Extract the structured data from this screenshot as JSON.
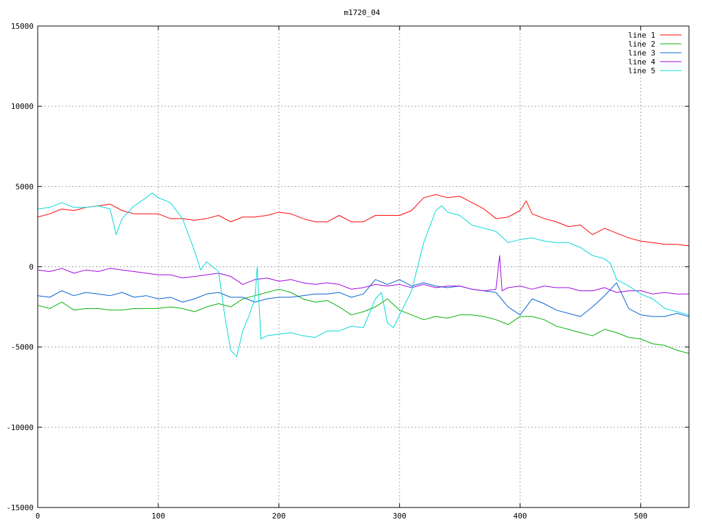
{
  "chart_data": {
    "type": "line",
    "title": "m1720_04",
    "xlabel": "",
    "ylabel": "",
    "xlim": [
      0,
      540
    ],
    "ylim": [
      -15000,
      15000
    ],
    "xticks": [
      0,
      100,
      200,
      300,
      400,
      500
    ],
    "yticks": [
      -15000,
      -10000,
      -5000,
      0,
      5000,
      10000,
      15000
    ],
    "grid": true,
    "legend_position": "top-right",
    "series": [
      {
        "name": "line 1",
        "color": "#ff0000",
        "x": [
          0,
          10,
          20,
          30,
          40,
          50,
          60,
          70,
          80,
          90,
          100,
          110,
          120,
          130,
          140,
          150,
          160,
          170,
          180,
          190,
          200,
          210,
          220,
          230,
          240,
          250,
          260,
          270,
          280,
          290,
          300,
          310,
          320,
          330,
          340,
          350,
          360,
          370,
          380,
          390,
          400,
          405,
          410,
          420,
          430,
          440,
          450,
          460,
          470,
          480,
          490,
          500,
          510,
          520,
          530,
          540
        ],
        "y": [
          3100,
          3300,
          3600,
          3500,
          3700,
          3800,
          3900,
          3500,
          3300,
          3300,
          3300,
          3000,
          3000,
          2900,
          3000,
          3200,
          2800,
          3100,
          3100,
          3200,
          3400,
          3300,
          3000,
          2800,
          2800,
          3200,
          2800,
          2800,
          3200,
          3200,
          3200,
          3500,
          4300,
          4500,
          4300,
          4400,
          4000,
          3600,
          3000,
          3100,
          3500,
          4100,
          3300,
          3000,
          2800,
          2500,
          2600,
          2000,
          2400,
          2100,
          1800,
          1600,
          1500,
          1400,
          1400,
          1300
        ]
      },
      {
        "name": "line 2",
        "color": "#00b000",
        "x": [
          0,
          10,
          20,
          30,
          40,
          50,
          60,
          70,
          80,
          90,
          100,
          110,
          120,
          130,
          140,
          150,
          160,
          170,
          180,
          190,
          200,
          210,
          220,
          230,
          240,
          250,
          260,
          270,
          280,
          290,
          300,
          310,
          320,
          330,
          340,
          350,
          360,
          370,
          380,
          390,
          400,
          410,
          420,
          430,
          440,
          450,
          460,
          470,
          480,
          490,
          500,
          510,
          520,
          530,
          540
        ],
        "y": [
          -2400,
          -2600,
          -2200,
          -2700,
          -2600,
          -2600,
          -2700,
          -2700,
          -2600,
          -2600,
          -2600,
          -2500,
          -2600,
          -2800,
          -2500,
          -2300,
          -2500,
          -2000,
          -1800,
          -1600,
          -1400,
          -1600,
          -2000,
          -2200,
          -2100,
          -2500,
          -3000,
          -2800,
          -2500,
          -2000,
          -2700,
          -3000,
          -3300,
          -3100,
          -3200,
          -3000,
          -3000,
          -3100,
          -3300,
          -3600,
          -3100,
          -3100,
          -3300,
          -3700,
          -3900,
          -4100,
          -4300,
          -3900,
          -4100,
          -4400,
          -4500,
          -4800,
          -4900,
          -5200,
          -5400
        ]
      },
      {
        "name": "line 3",
        "color": "#0060d0",
        "x": [
          0,
          10,
          20,
          30,
          40,
          50,
          60,
          70,
          80,
          90,
          100,
          110,
          120,
          130,
          140,
          150,
          160,
          170,
          180,
          190,
          200,
          210,
          220,
          230,
          240,
          250,
          260,
          270,
          280,
          290,
          300,
          310,
          320,
          330,
          340,
          350,
          360,
          370,
          380,
          390,
          400,
          410,
          420,
          430,
          440,
          450,
          460,
          470,
          480,
          490,
          500,
          510,
          520,
          530,
          540
        ],
        "y": [
          -1800,
          -1900,
          -1500,
          -1800,
          -1600,
          -1700,
          -1800,
          -1600,
          -1900,
          -1800,
          -2000,
          -1900,
          -2200,
          -2000,
          -1700,
          -1600,
          -1900,
          -1900,
          -2200,
          -2000,
          -1900,
          -1900,
          -1800,
          -1700,
          -1700,
          -1600,
          -1900,
          -1700,
          -800,
          -1100,
          -800,
          -1200,
          -1000,
          -1200,
          -1300,
          -1200,
          -1400,
          -1500,
          -1600,
          -2500,
          -3000,
          -2000,
          -2300,
          -2700,
          -2900,
          -3100,
          -2500,
          -1800,
          -1000,
          -2600,
          -3000,
          -3100,
          -3100,
          -2900,
          -3100
        ]
      },
      {
        "name": "line 4",
        "color": "#a000e0",
        "x": [
          0,
          10,
          20,
          30,
          40,
          50,
          60,
          70,
          80,
          90,
          100,
          110,
          120,
          130,
          140,
          150,
          160,
          170,
          180,
          190,
          200,
          210,
          220,
          230,
          240,
          250,
          260,
          270,
          280,
          290,
          300,
          310,
          320,
          330,
          340,
          350,
          360,
          370,
          380,
          383,
          385,
          390,
          400,
          410,
          420,
          430,
          440,
          450,
          460,
          470,
          480,
          490,
          500,
          510,
          520,
          530,
          540
        ],
        "y": [
          -200,
          -300,
          -100,
          -400,
          -200,
          -300,
          -100,
          -200,
          -300,
          -400,
          -500,
          -500,
          -700,
          -600,
          -500,
          -400,
          -600,
          -1100,
          -800,
          -700,
          -900,
          -800,
          -1000,
          -1100,
          -1000,
          -1100,
          -1400,
          -1300,
          -1100,
          -1200,
          -1100,
          -1300,
          -1100,
          -1300,
          -1200,
          -1200,
          -1400,
          -1500,
          -1400,
          700,
          -1500,
          -1300,
          -1200,
          -1400,
          -1200,
          -1300,
          -1300,
          -1500,
          -1500,
          -1300,
          -1600,
          -1500,
          -1500,
          -1700,
          -1600,
          -1700,
          -1700
        ]
      },
      {
        "name": "line 5",
        "color": "#00d8d8",
        "x": [
          0,
          10,
          20,
          30,
          40,
          50,
          60,
          65,
          70,
          80,
          90,
          95,
          100,
          110,
          120,
          130,
          135,
          140,
          150,
          155,
          160,
          165,
          170,
          175,
          180,
          182,
          185,
          190,
          200,
          210,
          220,
          230,
          240,
          250,
          260,
          270,
          280,
          285,
          290,
          295,
          300,
          310,
          320,
          330,
          335,
          340,
          350,
          360,
          370,
          380,
          390,
          400,
          410,
          420,
          430,
          440,
          450,
          460,
          470,
          475,
          480,
          490,
          500,
          510,
          520,
          530,
          540
        ],
        "y": [
          3600,
          3700,
          4000,
          3700,
          3700,
          3800,
          3600,
          2000,
          3000,
          3800,
          4300,
          4600,
          4300,
          4000,
          3000,
          1000,
          -200,
          300,
          -300,
          -3000,
          -5200,
          -5600,
          -4000,
          -3100,
          -2000,
          0,
          -4500,
          -4300,
          -4200,
          -4100,
          -4300,
          -4400,
          -4000,
          -4000,
          -3700,
          -3800,
          -2000,
          -1600,
          -3500,
          -3800,
          -3000,
          -1500,
          1500,
          3500,
          3800,
          3400,
          3200,
          2600,
          2400,
          2200,
          1500,
          1700,
          1800,
          1600,
          1500,
          1500,
          1200,
          700,
          500,
          200,
          -800,
          -1200,
          -1700,
          -2000,
          -2600,
          -2800,
          -3000
        ]
      }
    ]
  }
}
